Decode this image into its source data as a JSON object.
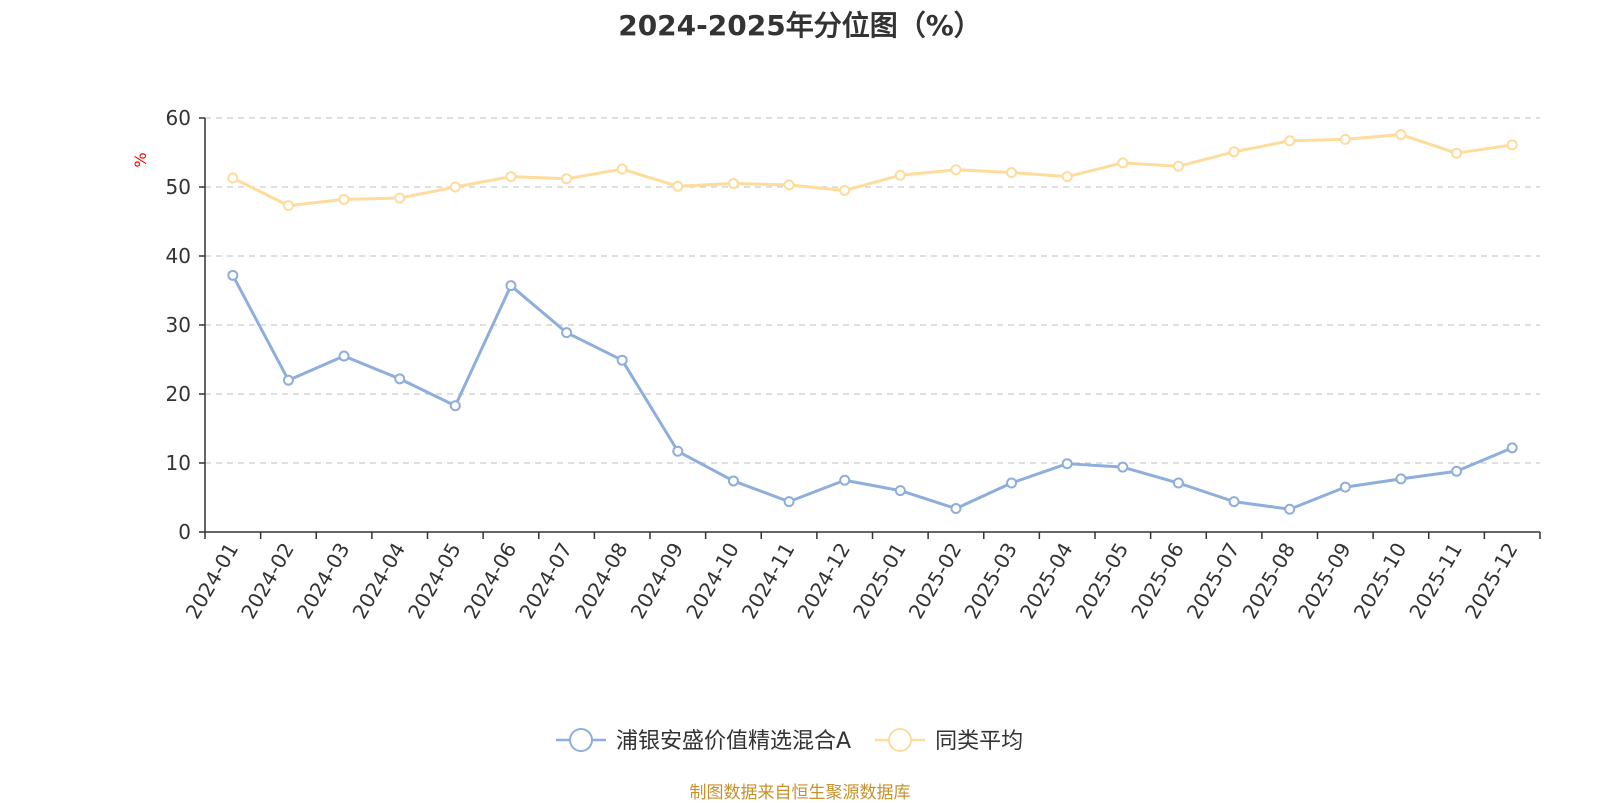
{
  "chart_data": {
    "type": "line",
    "title": "2024-2025年分位图（%）",
    "ylabel": "%",
    "xlabel": "",
    "ylim": [
      0,
      60
    ],
    "yticks": [
      0,
      10,
      20,
      30,
      40,
      50,
      60
    ],
    "grid": true,
    "legend_position": "bottom-center",
    "categories": [
      "2024-01",
      "2024-02",
      "2024-03",
      "2024-04",
      "2024-05",
      "2024-06",
      "2024-07",
      "2024-08",
      "2024-09",
      "2024-10",
      "2024-11",
      "2024-12",
      "2025-01",
      "2025-02",
      "2025-03",
      "2025-04",
      "2025-05",
      "2025-06",
      "2025-07",
      "2025-08",
      "2025-09",
      "2025-10",
      "2025-11",
      "2025-12"
    ],
    "series": [
      {
        "name": "浦银安盛价值精选混合A",
        "color": "#8eaedb",
        "values": [
          37.2,
          22.0,
          25.5,
          22.2,
          18.3,
          35.7,
          28.9,
          24.9,
          11.7,
          7.4,
          4.4,
          7.5,
          6.0,
          3.4,
          7.1,
          9.9,
          9.4,
          7.1,
          4.4,
          3.3,
          6.5,
          7.7,
          8.8,
          12.2
        ]
      },
      {
        "name": "同类平均",
        "color": "#fddc9c",
        "values": [
          51.3,
          47.3,
          48.2,
          48.4,
          50.0,
          51.5,
          51.2,
          52.6,
          50.1,
          50.5,
          50.3,
          49.5,
          51.7,
          52.5,
          52.1,
          51.5,
          53.5,
          53.0,
          55.1,
          56.7,
          56.9,
          57.6,
          54.9,
          56.1
        ]
      }
    ]
  },
  "source_note": "制图数据来自恒生聚源数据库",
  "colors": {
    "axis": "#333333",
    "grid": "#cccccc",
    "unit": "#ff0000",
    "source": "#c8912a"
  }
}
